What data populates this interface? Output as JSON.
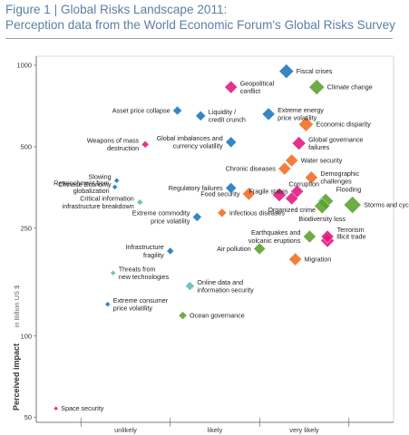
{
  "chart_data": {
    "type": "scatter",
    "title": "Figure 1 | Global Risks Landscape 2011:",
    "subtitle": "Perception data from the World Economic Forum's Global Risks Survey",
    "ylabel": "Perceived impact",
    "ylabel_units": "in Billion US $",
    "yscale": "log",
    "ylim": [
      48,
      1080
    ],
    "xlim": [
      0,
      2
    ],
    "y_ticks": [
      1000,
      500,
      250,
      100,
      50
    ],
    "x_ticks": [
      {
        "pos": 0.5,
        "label": "unlikely"
      },
      {
        "pos": 1.0,
        "label": "likely"
      },
      {
        "pos": 1.5,
        "label": "very likely"
      }
    ],
    "x_separators": [
      0.25,
      0.75,
      1.25,
      1.75
    ],
    "colors": {
      "economic": "#f26b21",
      "geopolitical": "#e0177d",
      "environmental": "#5aa02c",
      "technological": "#64b9b4",
      "societal": "#1b75bb",
      "frame": "#bbbbbb",
      "axis": "#555555"
    },
    "points": [
      {
        "label": "Fiscal crises",
        "x": 1.4,
        "y": 950,
        "size": 16,
        "color": "#1b75bb",
        "label_side": "right"
      },
      {
        "label": "Climate change",
        "x": 1.57,
        "y": 830,
        "size": 17,
        "color": "#5aa02c",
        "label_side": "right"
      },
      {
        "label": "Geopolitical conflict",
        "x": 1.09,
        "y": 830,
        "size": 14,
        "color": "#e0177d",
        "label_side": "right"
      },
      {
        "label": "Asset price collapse",
        "x": 0.79,
        "y": 680,
        "size": 10,
        "color": "#1b75bb",
        "label_side": "left"
      },
      {
        "label": "Liquidity / credit crunch",
        "x": 0.92,
        "y": 650,
        "size": 11,
        "color": "#1b75bb",
        "label_side": "right"
      },
      {
        "label": "Extreme energy price volatility",
        "x": 1.3,
        "y": 660,
        "size": 14,
        "color": "#1b75bb",
        "label_side": "right"
      },
      {
        "label": "Economic disparity",
        "x": 1.51,
        "y": 605,
        "size": 16,
        "color": "#f26b21",
        "label_side": "right"
      },
      {
        "label": "Global governance failures",
        "x": 1.47,
        "y": 515,
        "size": 15,
        "color": "#e0177d",
        "label_side": "right"
      },
      {
        "label": "Global imbalances and currency volatility",
        "x": 1.09,
        "y": 520,
        "size": 12,
        "color": "#1b75bb",
        "label_side": "left"
      },
      {
        "label": "Weapons of mass destruction",
        "x": 0.61,
        "y": 510,
        "size": 8,
        "color": "#e0177d",
        "label_side": "left"
      },
      {
        "label": "Water security",
        "x": 1.43,
        "y": 445,
        "size": 14,
        "color": "#f26b21",
        "label_side": "right"
      },
      {
        "label": "Chronic diseases",
        "x": 1.39,
        "y": 415,
        "size": 14,
        "color": "#f26b21",
        "label_side": "left"
      },
      {
        "label": "Demographic challenges",
        "x": 1.54,
        "y": 385,
        "size": 14,
        "color": "#f26b21",
        "label_side": "right"
      },
      {
        "label": "Slowing Chinese Economy",
        "x": 0.45,
        "y": 375,
        "size": 6,
        "color": "#1b75bb",
        "label_side": "left"
      },
      {
        "label": "Retrenchment from globalization",
        "x": 0.44,
        "y": 355,
        "size": 6,
        "color": "#1b75bb",
        "label_side": "left"
      },
      {
        "label": "Regulatory failures",
        "x": 1.09,
        "y": 352,
        "size": 12,
        "color": "#1b75bb",
        "label_side": "left"
      },
      {
        "label": "Fragile states",
        "x": 1.46,
        "y": 342,
        "size": 14,
        "color": "#e0177d",
        "label_side": "left"
      },
      {
        "label": "Food security",
        "x": 1.19,
        "y": 335,
        "size": 14,
        "color": "#f26b21",
        "label_side": "left"
      },
      {
        "label": "Corruption",
        "x": 1.36,
        "y": 332,
        "size": 15,
        "color": "#e0177d",
        "label_side": "none"
      },
      {
        "label": "Organized crime",
        "x": 1.43,
        "y": 322,
        "size": 14,
        "color": "#e0177d",
        "label_side": "below"
      },
      {
        "label": "Flooding",
        "x": 1.62,
        "y": 315,
        "size": 17,
        "color": "#5aa02c",
        "label_side": "none"
      },
      {
        "label": "Biodiversity loss",
        "x": 1.6,
        "y": 302,
        "size": 17,
        "color": "#5aa02c",
        "label_side": "below"
      },
      {
        "label": "Storms and cyclones",
        "x": 1.77,
        "y": 305,
        "size": 19,
        "color": "#5aa02c",
        "label_side": "right"
      },
      {
        "label": "Critical information infrastructure breakdown",
        "x": 0.58,
        "y": 312,
        "size": 7,
        "color": "#64b9b4",
        "label_side": "left"
      },
      {
        "label": "Infectious diseases",
        "x": 1.04,
        "y": 285,
        "size": 10,
        "color": "#f26b21",
        "label_side": "right"
      },
      {
        "label": "Extreme commodity price volatility",
        "x": 0.9,
        "y": 275,
        "size": 10,
        "color": "#1b75bb",
        "label_side": "left"
      },
      {
        "label": "Earthquakes and volcanic eruptions",
        "x": 1.53,
        "y": 233,
        "size": 14,
        "color": "#5aa02c",
        "label_side": "left"
      },
      {
        "label": "Illicit trade",
        "x": 1.63,
        "y": 233,
        "size": 14,
        "color": "#e0177d",
        "label_side": "right"
      },
      {
        "label": "Terrorism",
        "x": 1.63,
        "y": 225,
        "size": 15,
        "color": "#e0177d",
        "label_side": "none"
      },
      {
        "label": "Air pollution",
        "x": 1.25,
        "y": 210,
        "size": 13,
        "color": "#5aa02c",
        "label_side": "left"
      },
      {
        "label": "Migration",
        "x": 1.45,
        "y": 192,
        "size": 14,
        "color": "#f26b21",
        "label_side": "right"
      },
      {
        "label": "Infrastructure fragility",
        "x": 0.75,
        "y": 206,
        "size": 8,
        "color": "#1b75bb",
        "label_side": "left"
      },
      {
        "label": "Threats from new technologies",
        "x": 0.43,
        "y": 171,
        "size": 6,
        "color": "#64b9b4",
        "label_side": "right"
      },
      {
        "label": "Online data and information security",
        "x": 0.86,
        "y": 153,
        "size": 10,
        "color": "#64b9b4",
        "label_side": "right"
      },
      {
        "label": "Extreme consumer price volatility",
        "x": 0.4,
        "y": 131,
        "size": 6,
        "color": "#1b75bb",
        "label_side": "right"
      },
      {
        "label": "Ocean governance",
        "x": 0.82,
        "y": 119,
        "size": 9,
        "color": "#5aa02c",
        "label_side": "right"
      },
      {
        "label": "Space security",
        "x": 0.11,
        "y": 54,
        "size": 5,
        "color": "#e0177d",
        "label_side": "right"
      }
    ]
  }
}
